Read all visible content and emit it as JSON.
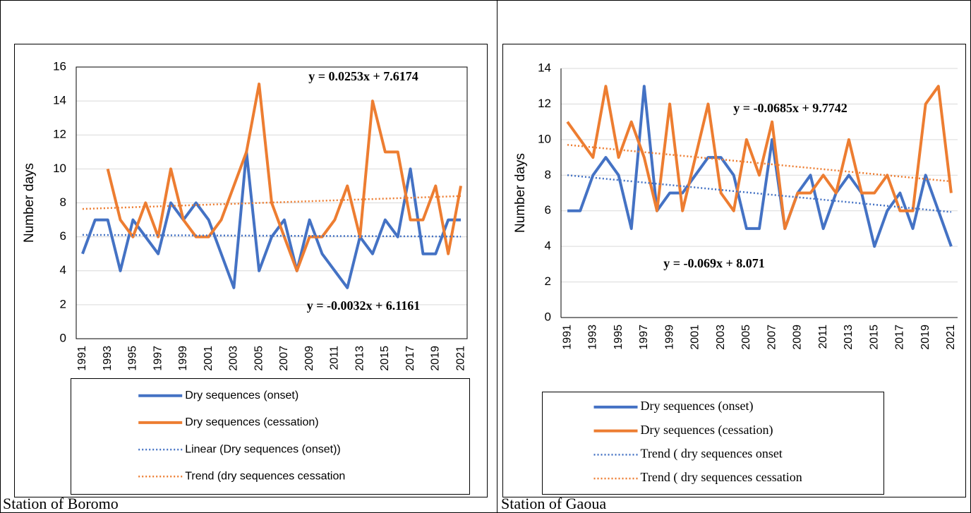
{
  "chart_data": [
    {
      "type": "line",
      "y_label": "Number days",
      "categories": [
        1991,
        null,
        1993,
        null,
        1995,
        null,
        1997,
        null,
        1999,
        null,
        2001,
        null,
        2003,
        null,
        2005,
        null,
        2007,
        null,
        2009,
        null,
        2011,
        null,
        2013,
        null,
        2015,
        null,
        2017,
        null,
        2019,
        null,
        2021
      ],
      "ylim": [
        0,
        16
      ],
      "yticks": [
        0,
        2,
        4,
        6,
        8,
        10,
        12,
        14,
        16
      ],
      "grid": true,
      "series": [
        {
          "name": "Dry sequences (onset)",
          "color": "#4472c4",
          "values": [
            5,
            7,
            7,
            4,
            7,
            6,
            5,
            8,
            7,
            8,
            7,
            5,
            3,
            11,
            4,
            6,
            7,
            4,
            7,
            5,
            4,
            3,
            6,
            5,
            7,
            6,
            10,
            5,
            5,
            7,
            7
          ]
        },
        {
          "name": "Dry sequences (cessation)",
          "color": "#ed7d31",
          "values": [
            null,
            null,
            10,
            7,
            6,
            8,
            6,
            10,
            7,
            6,
            6,
            7,
            9,
            11,
            15,
            8,
            6,
            4,
            6,
            6,
            7,
            9,
            6,
            14,
            11,
            11,
            7,
            7,
            9,
            5,
            9
          ]
        }
      ],
      "trends": [
        {
          "name": "Linear (Dry sequences (onset))",
          "color": "#4472c4",
          "slope": -0.0032,
          "intercept": 6.1161,
          "label": "y = -0.0032x + 6.1161"
        },
        {
          "name": "Trend (dry sequences cessation",
          "color": "#ed7d31",
          "slope": 0.0253,
          "intercept": 7.6174,
          "label": "y = 0.0253x + 7.6174"
        }
      ]
    },
    {
      "type": "line",
      "y_label": "Number days",
      "categories": [
        1991,
        null,
        1993,
        null,
        1995,
        null,
        1997,
        null,
        1999,
        null,
        2001,
        null,
        2003,
        null,
        2005,
        null,
        2007,
        null,
        2009,
        null,
        2011,
        null,
        2013,
        null,
        2015,
        null,
        2017,
        null,
        2019,
        null,
        2021
      ],
      "ylim": [
        0,
        14
      ],
      "yticks": [
        0,
        2,
        4,
        6,
        8,
        10,
        12,
        14
      ],
      "grid": true,
      "series": [
        {
          "name": "Dry sequences (onset)",
          "color": "#4472c4",
          "values": [
            6,
            6,
            8,
            9,
            8,
            5,
            13,
            6,
            7,
            7,
            8,
            9,
            9,
            8,
            5,
            5,
            10,
            5,
            7,
            8,
            5,
            7,
            8,
            7,
            4,
            6,
            7,
            5,
            8,
            6,
            4
          ]
        },
        {
          "name": "Dry sequences (cessation)",
          "color": "#ed7d31",
          "values": [
            11,
            10,
            9,
            13,
            9,
            11,
            9,
            6,
            12,
            6,
            9,
            12,
            7,
            6,
            10,
            8,
            11,
            5,
            7,
            7,
            8,
            7,
            10,
            7,
            7,
            8,
            6,
            6,
            12,
            13,
            7
          ]
        }
      ],
      "trends": [
        {
          "name": "Trend ( dry sequences onset",
          "color": "#4472c4",
          "slope": -0.069,
          "intercept": 8.071,
          "label": "y = -0.069x + 8.071"
        },
        {
          "name": "Trend ( dry sequences cessation",
          "color": "#ed7d31",
          "slope": -0.0685,
          "intercept": 9.7742,
          "label": "y = -0.0685x + 9.7742"
        }
      ]
    }
  ],
  "captions": [
    "Station of Boromo",
    "Station of Gaoua"
  ]
}
